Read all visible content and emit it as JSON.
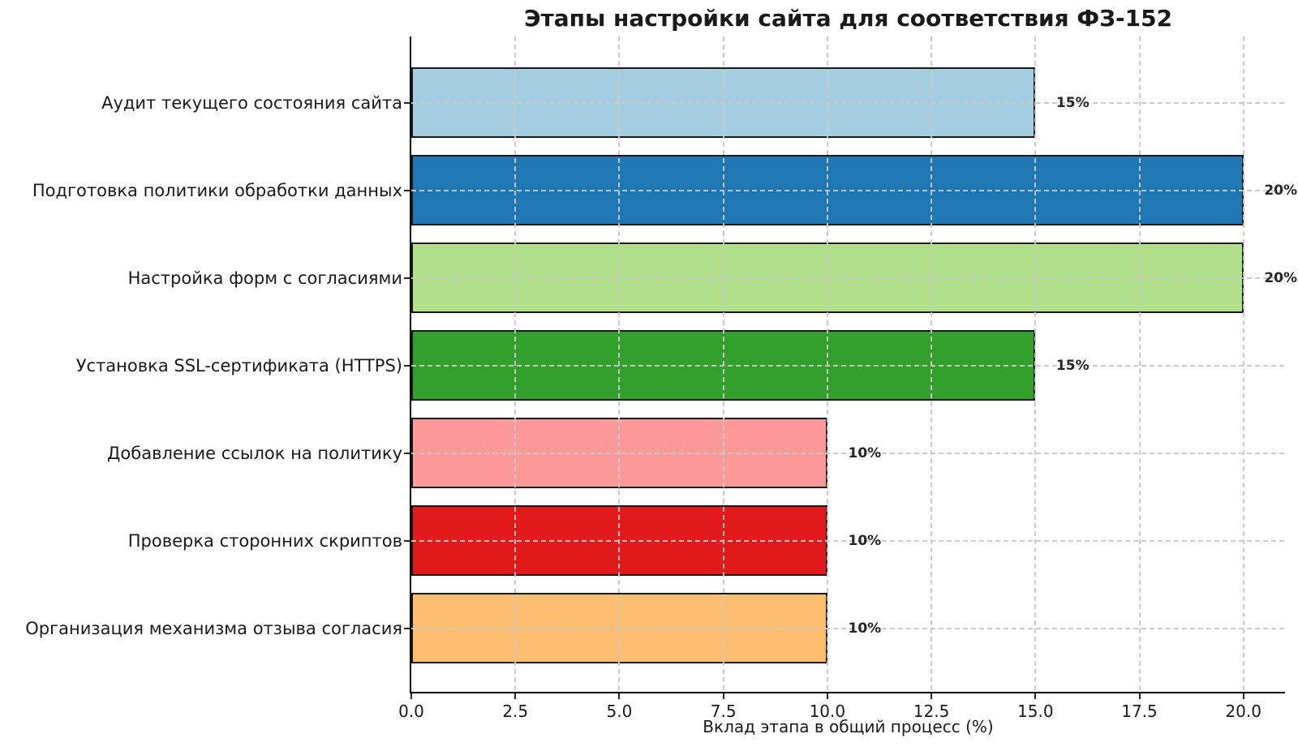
{
  "chart_data": {
    "type": "bar",
    "orientation": "horizontal",
    "title": "Этапы настройки сайта для соответствия ФЗ-152",
    "xlabel": "Вклад этапа в общий процесс (%)",
    "ylabel": "",
    "categories": [
      "Аудит текущего состояния сайта",
      "Подготовка политики обработки данных",
      "Настройка форм с согласиями",
      "Установка SSL-сертификата (HTTPS)",
      "Добавление ссылок на политику",
      "Проверка сторонних скриптов",
      "Организация механизма отзыва согласия"
    ],
    "values": [
      15,
      20,
      20,
      15,
      10,
      10,
      10
    ],
    "value_labels": [
      "15%",
      "20%",
      "20%",
      "15%",
      "10%",
      "10%",
      "10%"
    ],
    "bar_colors": [
      "#a6cee3",
      "#1f78b4",
      "#b2df8a",
      "#33a02c",
      "#fb9a99",
      "#e31a1c",
      "#fdbf6f"
    ],
    "bar_edge_color": "#1a1a1a",
    "xlim": [
      0,
      21
    ],
    "xticks": [
      0,
      2.5,
      5,
      7.5,
      10,
      12.5,
      15,
      17.5,
      20
    ],
    "xtick_labels": [
      "0.0",
      "2.5",
      "5.0",
      "7.5",
      "10.0",
      "12.5",
      "15.0",
      "17.5",
      "20.0"
    ],
    "grid": {
      "style": "dashed",
      "axes": "both",
      "color": "#c8c8c8",
      "on_top_of_bars": true
    },
    "legend_position": "none",
    "colors": {
      "background": "#ffffff",
      "text": "#1a1a1a",
      "spine": "#000000",
      "value_label": "#262626"
    }
  }
}
